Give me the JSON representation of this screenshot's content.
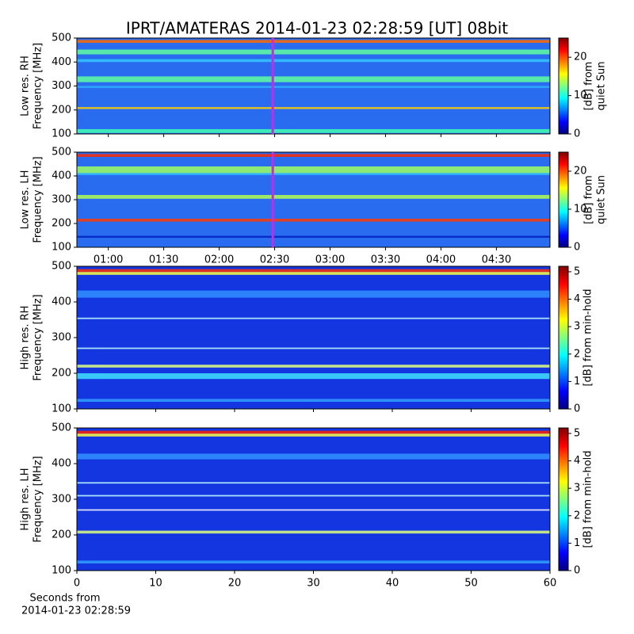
{
  "title": "IPRT/AMATERAS 2014-01-23 02:28:59 [UT]   08bit",
  "chart_data": [
    {
      "type": "spectrogram",
      "ylabel": [
        "Low res. RH",
        "Frequency [MHz]"
      ],
      "xlim": [
        43,
        299
      ],
      "xticks": [
        {
          "value": 60,
          "label": "01:00"
        },
        {
          "value": 90,
          "label": "01:30"
        },
        {
          "value": 120,
          "label": "02:00"
        },
        {
          "value": 150,
          "label": "02:30"
        },
        {
          "value": 180,
          "label": "03:00"
        },
        {
          "value": 210,
          "label": "03:30"
        },
        {
          "value": 240,
          "label": "04:00"
        },
        {
          "value": 270,
          "label": "04:30"
        }
      ],
      "xtick_labels": false,
      "ylim": [
        100,
        500
      ],
      "yticks": [
        100,
        200,
        300,
        400,
        500
      ],
      "cursor": 149,
      "cursor_color": "#e020e0",
      "colorbar": {
        "lim": [
          0,
          25
        ],
        "ticks": [
          0,
          10,
          20
        ],
        "label": [
          "[dB] from",
          "quiet Sun"
        ]
      }
    },
    {
      "type": "spectrogram",
      "ylabel": [
        "Low res. LH",
        "Frequency [MHz]"
      ],
      "xlim": [
        43,
        299
      ],
      "xticks": [
        {
          "value": 60,
          "label": "01:00"
        },
        {
          "value": 90,
          "label": "01:30"
        },
        {
          "value": 120,
          "label": "02:00"
        },
        {
          "value": 150,
          "label": "02:30"
        },
        {
          "value": 180,
          "label": "03:00"
        },
        {
          "value": 210,
          "label": "03:30"
        },
        {
          "value": 240,
          "label": "04:00"
        },
        {
          "value": 270,
          "label": "04:30"
        }
      ],
      "xtick_labels": true,
      "ylim": [
        100,
        500
      ],
      "yticks": [
        100,
        200,
        300,
        400,
        500
      ],
      "cursor": 149,
      "cursor_color": "#e020e0",
      "colorbar": {
        "lim": [
          0,
          25
        ],
        "ticks": [
          0,
          10,
          20
        ],
        "label": [
          "[dB] from",
          "quiet Sun"
        ]
      }
    },
    {
      "type": "spectrogram",
      "ylabel": [
        "High res. RH",
        "Frequency [MHz]"
      ],
      "xlim": [
        0,
        60
      ],
      "xticks": [
        0,
        10,
        20,
        30,
        40,
        50,
        60
      ],
      "xtick_labels": false,
      "ylim": [
        100,
        500
      ],
      "yticks": [
        100,
        200,
        300,
        400,
        500
      ],
      "colorbar": {
        "lim": [
          0,
          5.2
        ],
        "ticks": [
          0,
          1,
          2,
          3,
          4,
          5
        ],
        "label": [
          "[dB] from min-hold"
        ]
      }
    },
    {
      "type": "spectrogram",
      "ylabel": [
        "High res. LH",
        "Frequency [MHz]"
      ],
      "xlim": [
        0,
        60
      ],
      "xticks": [
        0,
        10,
        20,
        30,
        40,
        50,
        60
      ],
      "xtick_labels": true,
      "xlabel": [
        "Seconds from",
        "2014-01-23 02:28:59"
      ],
      "ylim": [
        100,
        500
      ],
      "yticks": [
        100,
        200,
        300,
        400,
        500
      ],
      "colorbar": {
        "lim": [
          0,
          5.2
        ],
        "ticks": [
          0,
          1,
          2,
          3,
          4,
          5
        ],
        "label": [
          "[dB] from min-hold"
        ]
      }
    }
  ]
}
